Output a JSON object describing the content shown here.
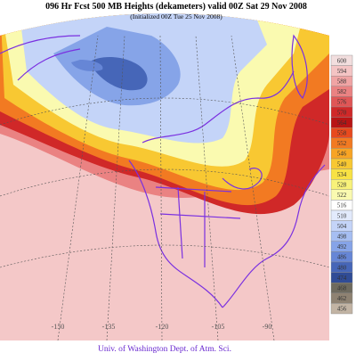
{
  "header": {
    "title": "096 Hr Fcst 500 MB Heights (dekameters) valid 00Z Sat 29 Nov 2008",
    "subtitle": "(Initialized 00Z Tue 25 Nov 2008)"
  },
  "colorbar": {
    "levels": [
      {
        "value": 600,
        "color": "#f2dede"
      },
      {
        "value": 594,
        "color": "#f4c4c4"
      },
      {
        "value": 588,
        "color": "#f0a4a4"
      },
      {
        "value": 582,
        "color": "#ea8282"
      },
      {
        "value": 576,
        "color": "#e05656"
      },
      {
        "value": 570,
        "color": "#d02828"
      },
      {
        "value": 564,
        "color": "#b81414"
      },
      {
        "value": 558,
        "color": "#e84a1e"
      },
      {
        "value": 552,
        "color": "#f27a22"
      },
      {
        "value": 546,
        "color": "#f8a424"
      },
      {
        "value": 540,
        "color": "#f8c832"
      },
      {
        "value": 534,
        "color": "#f8e244"
      },
      {
        "value": 528,
        "color": "#f8f27a"
      },
      {
        "value": 522,
        "color": "#fafab0"
      },
      {
        "value": 516,
        "color": "#ffffff"
      },
      {
        "value": 510,
        "color": "#e2eafc"
      },
      {
        "value": 504,
        "color": "#c4d4f8"
      },
      {
        "value": 498,
        "color": "#a6bef2"
      },
      {
        "value": 492,
        "color": "#86a4e8"
      },
      {
        "value": 486,
        "color": "#6686d6"
      },
      {
        "value": 480,
        "color": "#4666b8"
      },
      {
        "value": 474,
        "color": "#304c96"
      },
      {
        "value": 468,
        "color": "#6e6a5e"
      },
      {
        "value": 462,
        "color": "#8e8272"
      },
      {
        "value": 456,
        "color": "#c2b4a4"
      }
    ]
  },
  "map": {
    "longitudes": [
      -150,
      -135,
      -120,
      -105,
      -90
    ]
  },
  "footer": {
    "credit": "Univ. of Washington Dept. of Atm. Sci."
  }
}
